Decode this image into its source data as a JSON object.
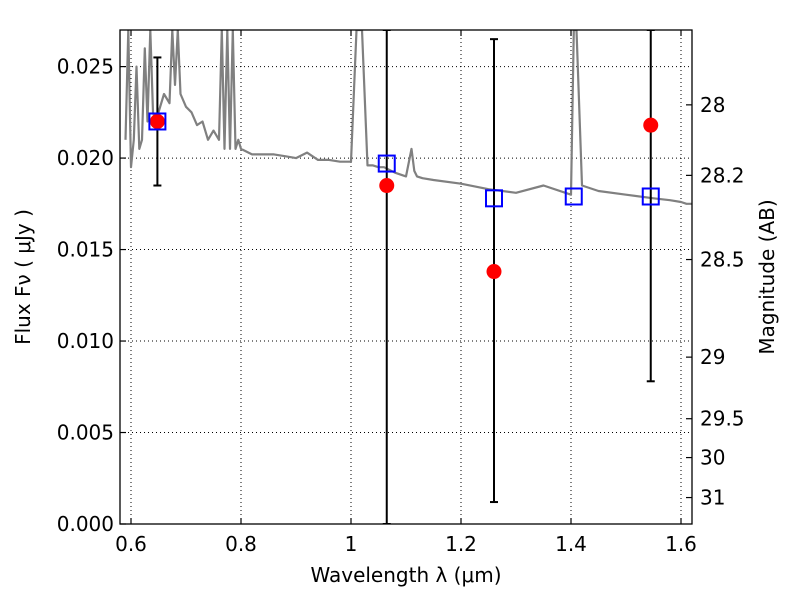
{
  "chart_data": {
    "type": "scatter",
    "xlabel": "Wavelength  λ (μm)",
    "ylabel": "Flux  Fν  ( μJy )",
    "y2label": "Magnitude (AB)",
    "xlim": [
      0.58,
      1.62
    ],
    "ylim": [
      0.0,
      0.027
    ],
    "grid": true,
    "x_ticks": [
      "0.6",
      "0.8",
      "1",
      "1.2",
      "1.4",
      "1.6"
    ],
    "x_tick_values": [
      0.6,
      0.8,
      1.0,
      1.2,
      1.4,
      1.6
    ],
    "y_ticks": [
      "0.000",
      "0.005",
      "0.010",
      "0.015",
      "0.020",
      "0.025"
    ],
    "y_tick_values": [
      0.0,
      0.005,
      0.01,
      0.015,
      0.02,
      0.025
    ],
    "y2_ticks": [
      "28",
      "28.2",
      "28.5",
      "29",
      "29.5",
      "30",
      "31"
    ],
    "y2_tick_values": [
      28,
      28.2,
      28.5,
      29,
      29.5,
      30,
      31
    ],
    "colors": {
      "spectrum": "#808080",
      "observed": "#ff0000",
      "model": "#0000ff",
      "errorbar": "#000000"
    },
    "spectrum": {
      "x": [
        0.59,
        0.595,
        0.6,
        0.605,
        0.61,
        0.615,
        0.62,
        0.625,
        0.63,
        0.635,
        0.64,
        0.645,
        0.65,
        0.66,
        0.67,
        0.675,
        0.68,
        0.685,
        0.69,
        0.7,
        0.71,
        0.72,
        0.73,
        0.74,
        0.75,
        0.76,
        0.765,
        0.77,
        0.775,
        0.78,
        0.785,
        0.79,
        0.795,
        0.8,
        0.82,
        0.84,
        0.86,
        0.88,
        0.9,
        0.92,
        0.94,
        0.96,
        0.98,
        1.0,
        1.01,
        1.02,
        1.03,
        1.04,
        1.05,
        1.06,
        1.08,
        1.1,
        1.11,
        1.115,
        1.12,
        1.13,
        1.15,
        1.2,
        1.25,
        1.3,
        1.35,
        1.4,
        1.405,
        1.41,
        1.42,
        1.45,
        1.5,
        1.55,
        1.58,
        1.6,
        1.61,
        1.62
      ],
      "y": [
        0.021,
        0.027,
        0.0195,
        0.021,
        0.025,
        0.0205,
        0.021,
        0.026,
        0.022,
        0.027,
        0.0225,
        0.022,
        0.0225,
        0.0235,
        0.023,
        0.027,
        0.024,
        0.027,
        0.0235,
        0.0228,
        0.0225,
        0.0218,
        0.022,
        0.021,
        0.0215,
        0.021,
        0.027,
        0.0205,
        0.027,
        0.0205,
        0.027,
        0.0205,
        0.021,
        0.0205,
        0.0202,
        0.0202,
        0.0202,
        0.0201,
        0.02,
        0.0203,
        0.0199,
        0.0199,
        0.0198,
        0.0198,
        0.027,
        0.027,
        0.0196,
        0.0196,
        0.0195,
        0.0195,
        0.0192,
        0.019,
        0.0205,
        0.0193,
        0.019,
        0.0189,
        0.0188,
        0.0186,
        0.0183,
        0.0181,
        0.0185,
        0.018,
        0.027,
        0.027,
        0.0185,
        0.0182,
        0.018,
        0.0178,
        0.0177,
        0.0176,
        0.0175,
        0.0175
      ]
    },
    "observed_points": {
      "x": [
        0.648,
        1.065,
        1.26,
        1.545
      ],
      "y": [
        0.022,
        0.0185,
        0.0138,
        0.0218
      ],
      "err_low": [
        0.0185,
        0.0,
        0.0012,
        0.0078
      ],
      "err_high": [
        0.0255,
        0.027,
        0.0265,
        0.027
      ]
    },
    "model_points": {
      "x": [
        0.648,
        1.065,
        1.26,
        1.405,
        1.545
      ],
      "y": [
        0.022,
        0.0197,
        0.0178,
        0.0179,
        0.0179
      ]
    }
  }
}
